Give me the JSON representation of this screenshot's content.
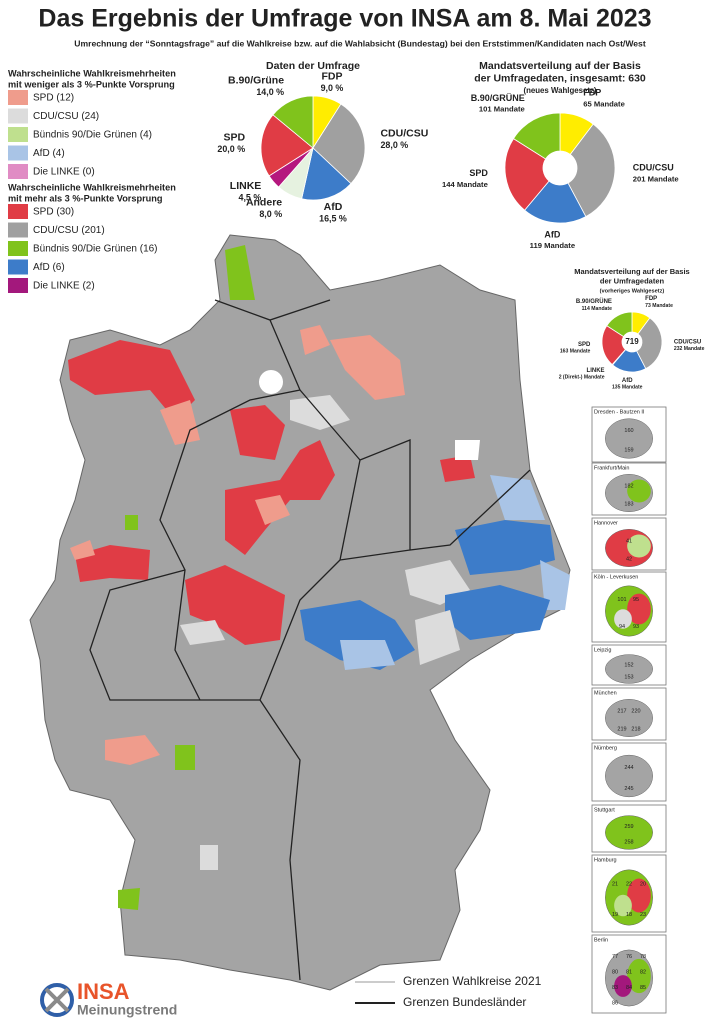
{
  "header": {
    "title": "Das Ergebnis der Umfrage von INSA am 8. Mai 2023",
    "subtitle": "Umrechnung der “Sonntagsfrage” auf die Wahlkreise bzw. auf die Wahlabsicht (Bundestag) bei den Erststimmen/Kandidaten nach Ost/West"
  },
  "legends": [
    {
      "title": [
        "Wahrscheinliche Wahlkreismehrheiten",
        "mit weniger als 3 %-Punkte Vorsprung"
      ],
      "items": [
        {
          "label": "SPD (12)",
          "color": "#ef9c8c"
        },
        {
          "label": "CDU/CSU (24)",
          "color": "#dcdcdc"
        },
        {
          "label": "Bündnis 90/Die Grünen (4)",
          "color": "#bfe08e"
        },
        {
          "label": "AfD (4)",
          "color": "#a9c4e6"
        },
        {
          "label": "Die LINKE (0)",
          "color": "#e08cc4"
        }
      ]
    },
    {
      "title": [
        "Wahrscheinliche Wahlkreismehrheiten",
        "mit mehr als 3 %-Punkte Vorsprung"
      ],
      "items": [
        {
          "label": "SPD (30)",
          "color": "#e03c45"
        },
        {
          "label": "CDU/CSU (201)",
          "color": "#a0a0a0"
        },
        {
          "label": "Bündnis 90/Die Grünen (16)",
          "color": "#80c31c"
        },
        {
          "label": "AfD (6)",
          "color": "#3d7cc9"
        },
        {
          "label": "Die LINKE (2)",
          "color": "#a3187c"
        }
      ]
    }
  ],
  "chart_data": [
    {
      "type": "pie",
      "title": [
        "Daten der Umfrage"
      ],
      "categories": [
        "FDP",
        "CDU/CSU",
        "AfD",
        "Andere",
        "LINKE",
        "SPD",
        "B.90/Grüne"
      ],
      "values": [
        9.0,
        28.0,
        16.5,
        8.0,
        4.5,
        20.0,
        14.0
      ],
      "value_labels": [
        "9,0 %",
        "28,0 %",
        "16,5 %",
        "8,0 %",
        "4,5 %",
        "20,0 %",
        "14,0 %"
      ],
      "colors": [
        "#ffed00",
        "#a0a0a0",
        "#3d7cc9",
        "#e6f2e0",
        "#b5177e",
        "#e03c45",
        "#80c31c"
      ]
    },
    {
      "type": "donut",
      "title": [
        "Mandatsverteilung auf der Basis",
        "der Umfragedaten, insgesamt: 630",
        "(neues Wahlgesetz)"
      ],
      "categories": [
        "FDP",
        "CDU/CSU",
        "AfD",
        "SPD",
        "B.90/GRÜNE"
      ],
      "values": [
        65,
        201,
        119,
        144,
        101
      ],
      "value_labels": [
        "65 Mandate",
        "201 Mandate",
        "119 Mandate",
        "144 Mandate",
        "101 Mandate"
      ],
      "colors": [
        "#ffed00",
        "#a0a0a0",
        "#3d7cc9",
        "#e03c45",
        "#80c31c"
      ]
    },
    {
      "type": "donut",
      "title": [
        "Mandatsverteilung auf der Basis",
        "der Umfragedaten",
        "(vorheriges Wahlgesetz)"
      ],
      "total": 719,
      "categories": [
        "FDP",
        "CDU/CSU",
        "AfD",
        "LINKE",
        "SPD",
        "B.90/GRÜNE"
      ],
      "values": [
        73,
        232,
        135,
        2,
        163,
        114
      ],
      "value_labels": [
        "73 Mandate",
        "232 Mandate",
        "135 Mandate",
        "2 (Direkt-) Mandate",
        "163 Mandate",
        "114 Mandate"
      ],
      "colors": [
        "#ffed00",
        "#a0a0a0",
        "#3d7cc9",
        "#b5177e",
        "#e03c45",
        "#80c31c"
      ]
    }
  ],
  "insets": [
    {
      "title": "Dresden - Bautzen II",
      "labels": [
        "160",
        "159"
      ]
    },
    {
      "title": "Frankfurt/Main",
      "labels": [
        "182",
        "183"
      ]
    },
    {
      "title": "Hannover",
      "labels": [
        "41",
        "42"
      ]
    },
    {
      "title": "Köln - Leverkusen",
      "labels": [
        "101",
        "95",
        "94",
        "93"
      ]
    },
    {
      "title": "Leipzig",
      "labels": [
        "152",
        "153"
      ]
    },
    {
      "title": "München",
      "labels": [
        "217",
        "220",
        "219",
        "218"
      ]
    },
    {
      "title": "Nürnberg",
      "labels": [
        "244",
        "245"
      ]
    },
    {
      "title": "Stuttgart",
      "labels": [
        "259",
        "258"
      ]
    },
    {
      "title": "Hamburg",
      "labels": [
        "21",
        "22",
        "20",
        "19",
        "18",
        "23"
      ]
    },
    {
      "title": "Berlin",
      "labels": [
        "77",
        "76",
        "78",
        "80",
        "81",
        "82",
        "83",
        "84",
        "85",
        "86"
      ]
    }
  ],
  "map_legend": [
    "Grenzen Wahlkreise 2021",
    "Grenzen Bundesländer"
  ],
  "logo": {
    "brand": "INSA",
    "tagline": "Meinungstrend"
  }
}
